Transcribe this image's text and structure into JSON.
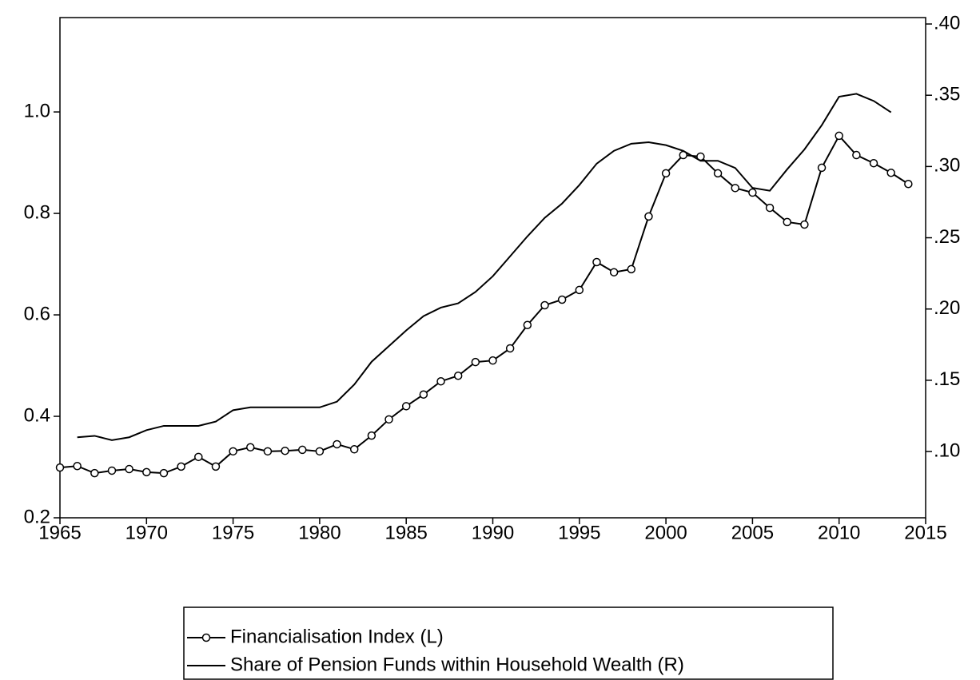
{
  "chart_data": {
    "type": "line",
    "x": [
      1965,
      1966,
      1967,
      1968,
      1969,
      1970,
      1971,
      1972,
      1973,
      1974,
      1975,
      1976,
      1977,
      1978,
      1979,
      1980,
      1981,
      1982,
      1983,
      1984,
      1985,
      1986,
      1987,
      1988,
      1989,
      1990,
      1991,
      1992,
      1993,
      1994,
      1995,
      1996,
      1997,
      1998,
      1999,
      2000,
      2001,
      2002,
      2003,
      2004,
      2005,
      2006,
      2007,
      2008,
      2009,
      2010,
      2011,
      2012,
      2013,
      2014
    ],
    "series": [
      {
        "name": "Financialisation Index (L)",
        "color": "#000000",
        "marker": "circle",
        "values": [
          0.299,
          0.302,
          0.288,
          0.293,
          0.296,
          0.29,
          0.288,
          0.301,
          0.32,
          0.301,
          0.331,
          0.339,
          0.331,
          0.332,
          0.334,
          0.331,
          0.345,
          0.335,
          0.362,
          0.394,
          0.42,
          0.443,
          0.469,
          0.48,
          0.507,
          0.51,
          0.534,
          0.58,
          0.619,
          0.63,
          0.649,
          0.704,
          0.684,
          0.69,
          0.794,
          0.879,
          0.915,
          0.912,
          0.879,
          0.85,
          0.841,
          0.811,
          0.783,
          0.778,
          0.89,
          0.953,
          0.915,
          0.899,
          0.88,
          0.858
        ]
      },
      {
        "name": "Share of Pension Funds within Household Wealth (R)",
        "color": "#000000",
        "axis": "y2",
        "values": [
          null,
          0.11,
          0.111,
          0.108,
          0.11,
          0.115,
          0.118,
          0.118,
          0.118,
          0.121,
          0.129,
          0.131,
          0.131,
          0.131,
          0.131,
          0.131,
          0.135,
          0.147,
          0.163,
          0.174,
          0.185,
          0.195,
          0.201,
          0.204,
          0.212,
          0.223,
          0.237,
          0.251,
          0.264,
          0.274,
          0.287,
          0.302,
          0.311,
          0.316,
          0.317,
          0.315,
          0.311,
          0.304,
          0.304,
          0.299,
          0.285,
          0.283,
          0.298,
          0.312,
          0.329,
          0.349,
          0.351,
          0.346,
          0.338,
          null
        ]
      }
    ],
    "xlim": [
      1965,
      2015
    ],
    "xticks": [
      1965,
      1970,
      1975,
      1980,
      1985,
      1990,
      1995,
      2000,
      2005,
      2010,
      2015
    ],
    "ylim": [
      0.2,
      1.186
    ],
    "yticks": [
      0.2,
      0.4,
      0.6,
      0.8,
      {
        "value": 1,
        "label": "1.0"
      }
    ],
    "y2lim": [
      0.0535,
      0.4045
    ],
    "y2ticks": [
      {
        "value": 0.1,
        "label": ".10"
      },
      {
        "value": 0.15,
        "label": ".15"
      },
      {
        "value": 0.2,
        "label": ".20"
      },
      {
        "value": 0.25,
        "label": ".25"
      },
      {
        "value": 0.3,
        "label": ".30"
      },
      {
        "value": 0.35,
        "label": ".35"
      },
      {
        "value": 0.4,
        "label": ".40"
      }
    ],
    "legend": "bottom"
  }
}
